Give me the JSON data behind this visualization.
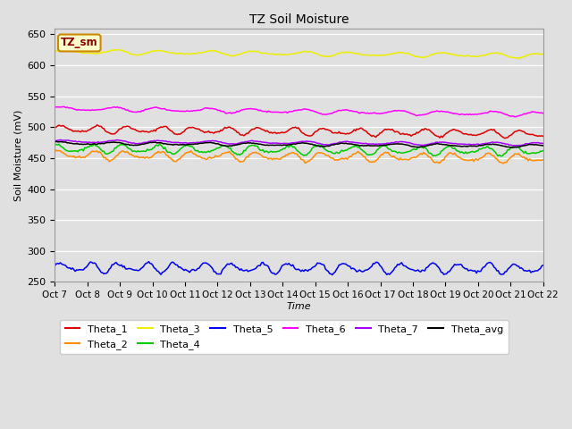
{
  "title": "TZ Soil Moisture",
  "xlabel": "Time",
  "ylabel": "Soil Moisture (mV)",
  "ylim": [
    250,
    660
  ],
  "xlim": [
    0,
    360
  ],
  "background_color": "#e0e0e0",
  "plot_bg_color": "#e0e0e0",
  "grid_color": "#ffffff",
  "num_points": 360,
  "series_order": [
    "Theta_1",
    "Theta_2",
    "Theta_3",
    "Theta_4",
    "Theta_5",
    "Theta_6",
    "Theta_7",
    "Theta_avg"
  ],
  "series": {
    "Theta_1": {
      "color": "#dd0000",
      "base": 497,
      "trend": -0.022,
      "amp": 5,
      "freq": 0.26,
      "phase": 0.0
    },
    "Theta_2": {
      "color": "#ff8c00",
      "base": 455,
      "trend": -0.015,
      "amp": 6,
      "freq": 0.26,
      "phase": 0.5
    },
    "Theta_3": {
      "color": "#eeee00",
      "base": 622,
      "trend": -0.018,
      "amp": 3,
      "freq": 0.18,
      "phase": 0.0
    },
    "Theta_4": {
      "color": "#00cc00",
      "base": 465,
      "trend": -0.01,
      "amp": 6,
      "freq": 0.26,
      "phase": 1.0
    },
    "Theta_5": {
      "color": "#0000ee",
      "base": 273,
      "trend": -0.005,
      "amp": 7,
      "freq": 0.3,
      "phase": 0.0
    },
    "Theta_6": {
      "color": "#ff00ff",
      "base": 530,
      "trend": -0.025,
      "amp": 3,
      "freq": 0.18,
      "phase": 0.3
    },
    "Theta_7": {
      "color": "#aa00ff",
      "base": 477,
      "trend": -0.012,
      "amp": 2,
      "freq": 0.18,
      "phase": 0.0
    },
    "Theta_avg": {
      "color": "#000000",
      "base": 474,
      "trend": -0.012,
      "amp": 2,
      "freq": 0.18,
      "phase": 0.5
    }
  },
  "xtick_labels": [
    "Oct 7",
    "Oct 8",
    "Oct 9",
    "Oct 10",
    "Oct 11",
    "Oct 12",
    "Oct 13",
    "Oct 14",
    "Oct 15",
    "Oct 16",
    "Oct 17",
    "Oct 18",
    "Oct 19",
    "Oct 20",
    "Oct 21",
    "Oct 22"
  ],
  "xtick_positions": [
    0,
    24,
    48,
    72,
    96,
    120,
    144,
    168,
    192,
    216,
    240,
    264,
    288,
    312,
    336,
    360
  ],
  "yticks": [
    250,
    300,
    350,
    400,
    450,
    500,
    550,
    600,
    650
  ],
  "legend_label": "TZ_sm",
  "legend_box_facecolor": "#ffffcc",
  "legend_box_edgecolor": "#cc8800",
  "legend_text_color": "#880000"
}
